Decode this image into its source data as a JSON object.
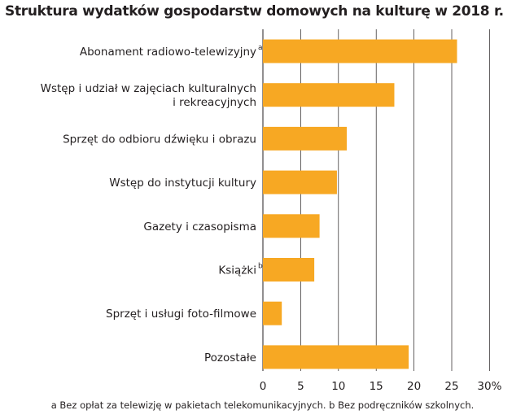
{
  "title": "Struktura wydatków gospodarstw domowych na kulturę w 2018 r.",
  "footnote": "a Bez opłat za telewizję w pakietach telekomunikacyjnych. b Bez podręczników szkolnych.",
  "colors": {
    "bar": "#f7a823",
    "grid": "#231f20",
    "text": "#231f20"
  },
  "chart_data": {
    "type": "bar",
    "orientation": "horizontal",
    "categories": [
      "Abonament radiowo-telewizyjny",
      "Wstęp i udział w zajęciach kulturalnych i rekreacyjnych",
      "Sprzęt do odbioru dźwięku i obrazu",
      "Wstęp do instytucji kultury",
      "Gazety i czasopisma",
      "Książki",
      "Sprzęt i usługi foto-filmowe",
      "Pozostałe"
    ],
    "category_lines": [
      [
        "Abonament radiowo-telewizyjny"
      ],
      [
        "Wstęp i udział w zajęciach kulturalnych",
        "i rekreacyjnych"
      ],
      [
        "Sprzęt do odbioru dźwięku i obrazu"
      ],
      [
        "Wstęp do instytucji kultury"
      ],
      [
        "Gazety i czasopisma"
      ],
      [
        "Książki"
      ],
      [
        "Sprzęt i usługi foto-filmowe"
      ],
      [
        "Pozostałe"
      ]
    ],
    "category_marks": [
      "a",
      "",
      "",
      "",
      "",
      "b",
      "",
      ""
    ],
    "values": [
      25.7,
      17.4,
      11.1,
      9.8,
      7.5,
      6.8,
      2.5,
      19.3
    ],
    "xlim": [
      0,
      30
    ],
    "xticks": [
      0,
      5,
      10,
      15,
      20,
      25,
      30
    ],
    "xtick_labels": [
      "0",
      "5",
      "10",
      "15",
      "20",
      "25",
      "30%"
    ],
    "grid": "vertical"
  }
}
